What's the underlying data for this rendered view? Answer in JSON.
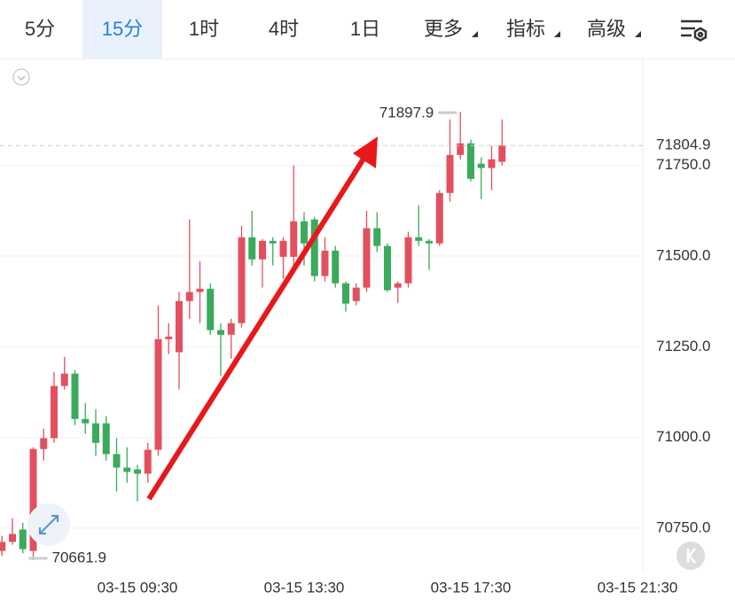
{
  "tabs": {
    "items": [
      "5分",
      "15分",
      "1时",
      "4时",
      "1日",
      "更多",
      "指标",
      "高级"
    ],
    "active": 1
  },
  "chart_data": {
    "type": "candlestick",
    "categories": [
      null,
      null,
      null,
      null,
      null,
      null,
      null,
      null,
      null,
      null,
      null,
      null,
      null,
      "03-15 09:30",
      null,
      null,
      null,
      null,
      null,
      null,
      null,
      null,
      null,
      null,
      null,
      null,
      null,
      null,
      null,
      "03-15 13:30",
      null,
      null,
      null,
      null,
      null,
      null,
      null,
      null,
      null,
      null,
      null,
      null,
      null,
      null,
      null,
      "03-15 17:30",
      null,
      null,
      null,
      null,
      null,
      null,
      null,
      null,
      null,
      null,
      null,
      null,
      null,
      null,
      null,
      "03-15 21:30"
    ],
    "open": [
      70687,
      70712,
      70746,
      70687,
      70968,
      70998,
      71142,
      71176,
      71051,
      71039,
      71039,
      70954,
      70917,
      70912,
      70900,
      70966,
      71271,
      71235,
      71376,
      71401,
      71410,
      71296,
      71283,
      71315,
      71552,
      71491,
      71542,
      71498,
      71498,
      71596,
      71601,
      71445,
      71515,
      71425,
      71376,
      71413,
      71577,
      71528,
      71413,
      71425,
      71552,
      71542,
      71535,
      71674,
      71779,
      71811,
      71755,
      71743,
      71760,
      null,
      null,
      null,
      null,
      null,
      null,
      null,
      null,
      null,
      null,
      null,
      null,
      null
    ],
    "high": [
      70729,
      70778,
      70765,
      70973,
      71024,
      71181,
      71222,
      71186,
      71095,
      71078,
      71059,
      70998,
      70973,
      70924,
      70985,
      71364,
      71315,
      71401,
      71601,
      71486,
      71425,
      71315,
      71327,
      71584,
      71625,
      71547,
      71552,
      71552,
      71750,
      71621,
      71608,
      71552,
      71528,
      71430,
      71425,
      71625,
      71621,
      71535,
      71430,
      71567,
      71640,
      71547,
      71682,
      71877,
      71897.9,
      71821,
      71772,
      71804,
      71877,
      null,
      null,
      null,
      null,
      null,
      null,
      null,
      null,
      null,
      null,
      null,
      null,
      null
    ],
    "low": [
      70673,
      70704,
      70680,
      70661.9,
      70936,
      70985,
      71132,
      71034,
      71010,
      70949,
      70936,
      70851,
      70875,
      70824,
      70875,
      70949,
      71230,
      71132,
      71327,
      71315,
      71283,
      71169,
      71217,
      71303,
      71474,
      71413,
      71474,
      71437,
      71474,
      71474,
      71430,
      71430,
      71413,
      71347,
      71364,
      71401,
      71511,
      71401,
      71371,
      71413,
      71528,
      71462,
      71528,
      71650,
      71767,
      71706,
      71657,
      71682,
      71750,
      null,
      null,
      null,
      null,
      null,
      null,
      null,
      null,
      null,
      null,
      null,
      null,
      null
    ],
    "close": [
      70712,
      70734,
      70692,
      70968,
      70998,
      71142,
      71176,
      71051,
      71039,
      70985,
      70954,
      70917,
      70905,
      70900,
      70966,
      71271,
      71278,
      71376,
      71401,
      71410,
      71296,
      71283,
      71315,
      71552,
      71491,
      71542,
      71535,
      71542,
      71596,
      71535,
      71445,
      71515,
      71425,
      71369,
      71413,
      71577,
      71528,
      71406,
      71425,
      71552,
      71542,
      71535,
      71674,
      71779,
      71811,
      71713,
      71743,
      71767,
      71804.9,
      null,
      null,
      null,
      null,
      null,
      null,
      null,
      null,
      null,
      null,
      null,
      null,
      null
    ],
    "up_color": "#e2505f",
    "down_color": "#3aaa5c",
    "ylim": [
      70630,
      72040
    ],
    "yticks": [
      {
        "value": 70750,
        "label": "70750.0"
      },
      {
        "value": 71000,
        "label": "71000.0"
      },
      {
        "value": 71250,
        "label": "71250.0"
      },
      {
        "value": 71500,
        "label": "71500.0"
      },
      {
        "value": 71750,
        "label": "71750.0"
      }
    ],
    "grid": true
  }
}
